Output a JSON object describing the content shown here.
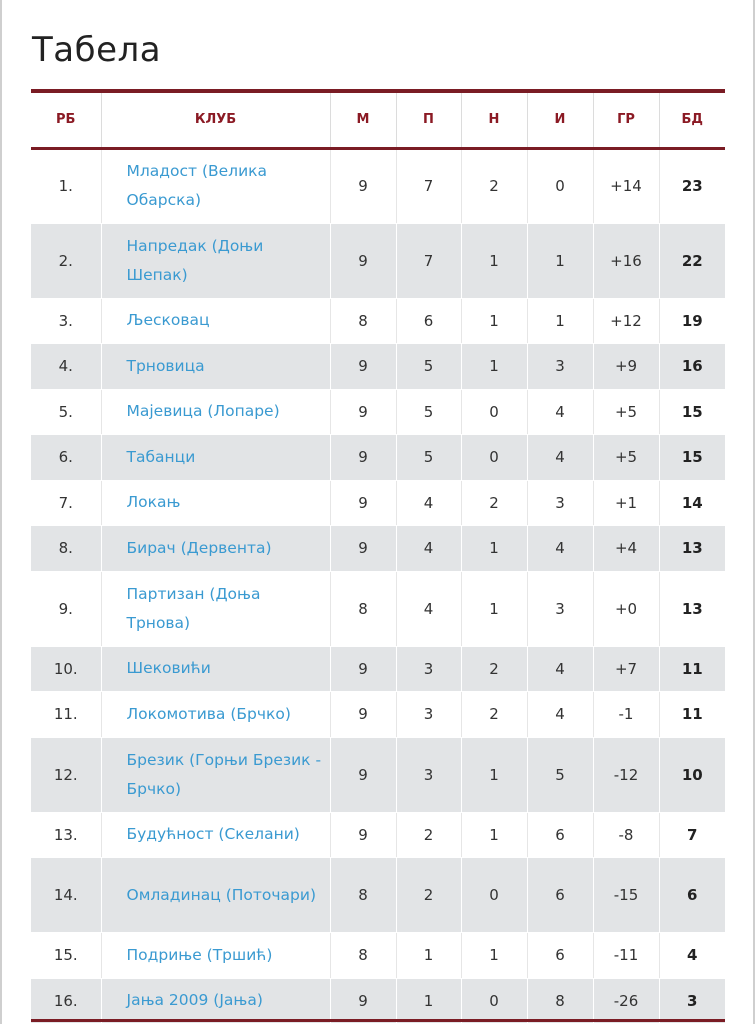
{
  "title": "Табела",
  "columns": [
    "РБ",
    "КЛУБ",
    "М",
    "П",
    "Н",
    "И",
    "ГР",
    "БД"
  ],
  "rows": [
    {
      "rank": "1.",
      "club": "Младост (Велика Обарска)",
      "m": "9",
      "p": "7",
      "n": "2",
      "i": "0",
      "gr": "+14",
      "bd": "23"
    },
    {
      "rank": "2.",
      "club": "Напредак (Доњи Шепак)",
      "m": "9",
      "p": "7",
      "n": "1",
      "i": "1",
      "gr": "+16",
      "bd": "22"
    },
    {
      "rank": "3.",
      "club": "Љесковац",
      "m": "8",
      "p": "6",
      "n": "1",
      "i": "1",
      "gr": "+12",
      "bd": "19"
    },
    {
      "rank": "4.",
      "club": "Трновица",
      "m": "9",
      "p": "5",
      "n": "1",
      "i": "3",
      "gr": "+9",
      "bd": "16"
    },
    {
      "rank": "5.",
      "club": "Мајевица (Лопаре)",
      "m": "9",
      "p": "5",
      "n": "0",
      "i": "4",
      "gr": "+5",
      "bd": "15"
    },
    {
      "rank": "6.",
      "club": "Табанци",
      "m": "9",
      "p": "5",
      "n": "0",
      "i": "4",
      "gr": "+5",
      "bd": "15"
    },
    {
      "rank": "7.",
      "club": "Локањ",
      "m": "9",
      "p": "4",
      "n": "2",
      "i": "3",
      "gr": "+1",
      "bd": "14"
    },
    {
      "rank": "8.",
      "club": "Бирач (Дервента)",
      "m": "9",
      "p": "4",
      "n": "1",
      "i": "4",
      "gr": "+4",
      "bd": "13"
    },
    {
      "rank": "9.",
      "club": "Партизан (Доња Трнова)",
      "m": "8",
      "p": "4",
      "n": "1",
      "i": "3",
      "gr": "+0",
      "bd": "13"
    },
    {
      "rank": "10.",
      "club": "Шековићи",
      "m": "9",
      "p": "3",
      "n": "2",
      "i": "4",
      "gr": "+7",
      "bd": "11"
    },
    {
      "rank": "11.",
      "club": "Локомотива (Брчко)",
      "m": "9",
      "p": "3",
      "n": "2",
      "i": "4",
      "gr": "-1",
      "bd": "11"
    },
    {
      "rank": "12.",
      "club": "Брезик (Горњи Брезик - Брчко)",
      "m": "9",
      "p": "3",
      "n": "1",
      "i": "5",
      "gr": "-12",
      "bd": "10"
    },
    {
      "rank": "13.",
      "club": "Будућност (Скелани)",
      "m": "9",
      "p": "2",
      "n": "1",
      "i": "6",
      "gr": "-8",
      "bd": "7"
    },
    {
      "rank": "14.",
      "club": "Омладинац (Поточари)",
      "m": "8",
      "p": "2",
      "n": "0",
      "i": "6",
      "gr": "-15",
      "bd": "6"
    },
    {
      "rank": "15.",
      "club": "Подриње (Тршић)",
      "m": "8",
      "p": "1",
      "n": "1",
      "i": "6",
      "gr": "-11",
      "bd": "4"
    },
    {
      "rank": "16.",
      "club": "Јања 2009 (Јања)",
      "m": "9",
      "p": "1",
      "n": "0",
      "i": "8",
      "gr": "-26",
      "bd": "3"
    }
  ]
}
